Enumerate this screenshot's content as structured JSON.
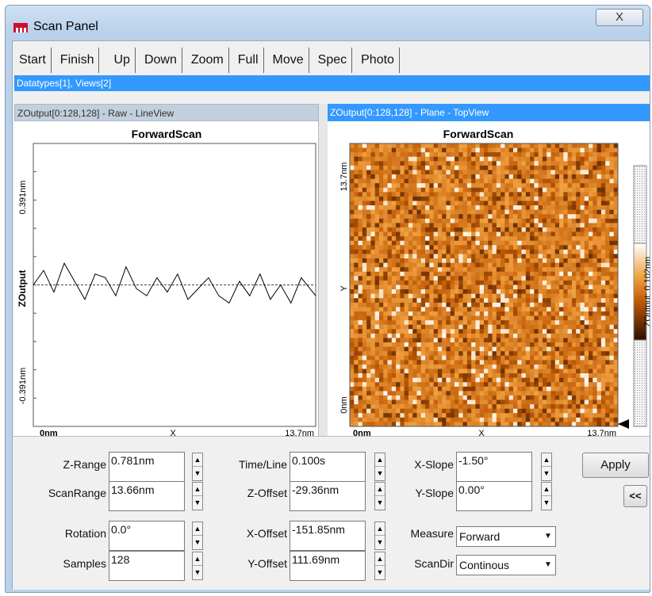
{
  "window": {
    "title": "Scan Panel",
    "close_glyph": "X"
  },
  "toolbar": {
    "buttons": [
      "Start",
      "Finish",
      "Up",
      "Down",
      "Zoom",
      "Full",
      "Move",
      "Spec",
      "Photo"
    ]
  },
  "datatypes_label": "Datatypes[1], Views[2]",
  "views": [
    {
      "header": "ZOutput[0:128,128] - Raw - LineView",
      "plot_title": "ForwardScan",
      "y_top": "0.391nm",
      "y_bottom": "-0.391nm",
      "y_label": "ZOutput",
      "x_left": "0nm",
      "x_right": "13.7nm",
      "x_label": "X"
    },
    {
      "header": "ZOutput[0:128,128] - Plane - TopView",
      "plot_title": "ForwardScan",
      "y_top": "13.7nm",
      "y_bottom": "0nm",
      "y_label": "Y",
      "x_left": "0nm",
      "x_right": "13.7nm",
      "x_label": "X",
      "colorbar_label": "ZOutput: 0.102nm"
    }
  ],
  "chart_data": [
    {
      "type": "line",
      "title": "ForwardScan",
      "xlabel": "X",
      "ylabel": "ZOutput",
      "xlim": [
        0,
        13.7
      ],
      "ylim": [
        -0.391,
        0.391
      ],
      "x": [
        0,
        0.5,
        1.0,
        1.5,
        2.0,
        2.5,
        3.0,
        3.5,
        4.0,
        4.5,
        5.0,
        5.5,
        6.0,
        6.5,
        7.0,
        7.5,
        8.0,
        8.5,
        9.0,
        9.5,
        10.0,
        10.5,
        11.0,
        11.5,
        12.0,
        12.5,
        13.0,
        13.7
      ],
      "y": [
        0.0,
        0.04,
        -0.02,
        0.06,
        0.01,
        -0.04,
        0.03,
        0.02,
        -0.03,
        0.05,
        -0.01,
        -0.03,
        0.02,
        -0.02,
        0.03,
        -0.04,
        -0.01,
        0.02,
        -0.03,
        -0.05,
        0.01,
        -0.03,
        0.03,
        -0.04,
        0.0,
        -0.05,
        0.02,
        -0.03
      ],
      "reference_line": 0.0
    },
    {
      "type": "heatmap",
      "title": "ForwardScan",
      "xlabel": "X",
      "ylabel": "Y",
      "xlim": [
        0,
        13.7
      ],
      "ylim": [
        0,
        13.7
      ],
      "colorbar_label": "ZOutput: 0.102nm",
      "colormap": [
        "#2a1000",
        "#c05a05",
        "#f0a040",
        "#ffffff"
      ]
    }
  ],
  "params": {
    "z_range": {
      "label": "Z-Range",
      "value": "0.781nm"
    },
    "scan_range": {
      "label": "ScanRange",
      "value": "13.66nm"
    },
    "rotation": {
      "label": "Rotation",
      "value": "0.0°"
    },
    "samples": {
      "label": "Samples",
      "value": "128"
    },
    "time_line": {
      "label": "Time/Line",
      "value": "0.100s"
    },
    "z_offset": {
      "label": "Z-Offset",
      "value": "-29.36nm"
    },
    "x_offset": {
      "label": "X-Offset",
      "value": "-151.85nm"
    },
    "y_offset": {
      "label": "Y-Offset",
      "value": "111.69nm"
    },
    "x_slope": {
      "label": "X-Slope",
      "value": "-1.50°"
    },
    "y_slope": {
      "label": "Y-Slope",
      "value": "0.00°"
    },
    "measure": {
      "label": "Measure",
      "value": "Forward"
    },
    "scan_dir": {
      "label": "ScanDir",
      "value": "Continous"
    }
  },
  "buttons": {
    "apply": "Apply",
    "collapse": "<<"
  },
  "colors": {
    "selection_blue": "#3399ff",
    "heatmap_dark": "#2a1000",
    "heatmap_orange": "#c05a05"
  }
}
